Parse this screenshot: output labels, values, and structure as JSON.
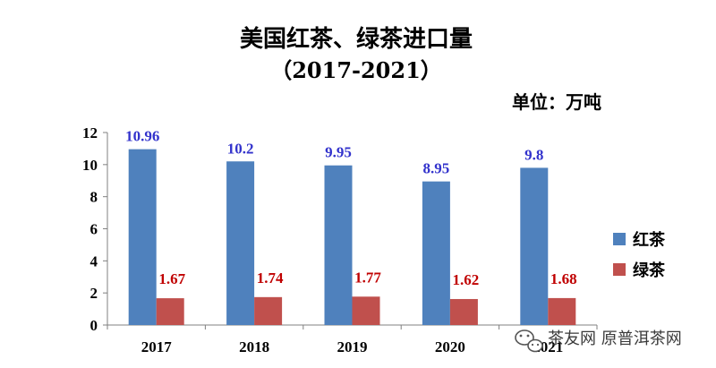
{
  "chart_data": {
    "type": "bar",
    "title": "美国红茶、绿茶进口量",
    "subtitle": "（2017-2021）",
    "unit_label": "单位：万吨",
    "categories": [
      "2017",
      "2018",
      "2019",
      "2020",
      "2021"
    ],
    "series": [
      {
        "name": "红茶",
        "values": [
          10.96,
          10.2,
          9.95,
          8.95,
          9.8
        ],
        "color": "#4f81bd",
        "label_color": "#3333cc"
      },
      {
        "name": "绿茶",
        "values": [
          1.67,
          1.74,
          1.77,
          1.62,
          1.68
        ],
        "color": "#c0504d",
        "label_color": "#c00000"
      }
    ],
    "ylim": [
      0,
      12
    ],
    "yticks": [
      0,
      2,
      4,
      6,
      8,
      10,
      12
    ],
    "data_labels": [
      [
        "10.96",
        "10.2",
        "9.95",
        "8.95",
        "9.8"
      ],
      [
        "1.67",
        "1.74",
        "1.77",
        "1.62",
        "1.68"
      ]
    ],
    "grid": false,
    "legend_position": "right"
  },
  "watermark": {
    "text": "茶友网 原普洱茶网"
  }
}
